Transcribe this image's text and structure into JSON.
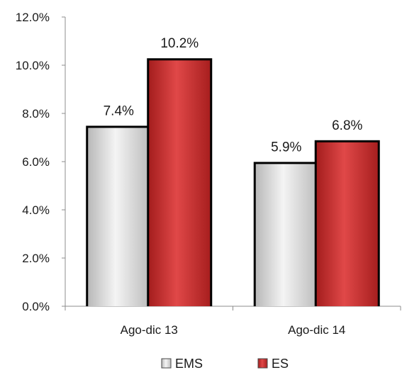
{
  "chart_data": {
    "type": "bar",
    "categories": [
      "Ago-dic 13",
      "Ago-dic 14"
    ],
    "series": [
      {
        "name": "EMS",
        "values": [
          7.4,
          5.9
        ],
        "labels": [
          "7.4%",
          "5.9%"
        ],
        "color": "#d4d4d4"
      },
      {
        "name": "ES",
        "values": [
          10.2,
          6.8
        ],
        "labels": [
          "10.2%",
          "6.8%"
        ],
        "color": "#c62a2a"
      }
    ],
    "ylim": [
      0,
      12
    ],
    "yticks": [
      {
        "value": 0,
        "label": "0.0%"
      },
      {
        "value": 2,
        "label": "2.0%"
      },
      {
        "value": 4,
        "label": "4.0%"
      },
      {
        "value": 6,
        "label": "6.0%"
      },
      {
        "value": 8,
        "label": "8.0%"
      },
      {
        "value": 10,
        "label": "10.0%"
      },
      {
        "value": 12,
        "label": "12.0%"
      }
    ],
    "grid": false,
    "legend_position": "bottom",
    "title": "",
    "xlabel": "",
    "ylabel": ""
  }
}
